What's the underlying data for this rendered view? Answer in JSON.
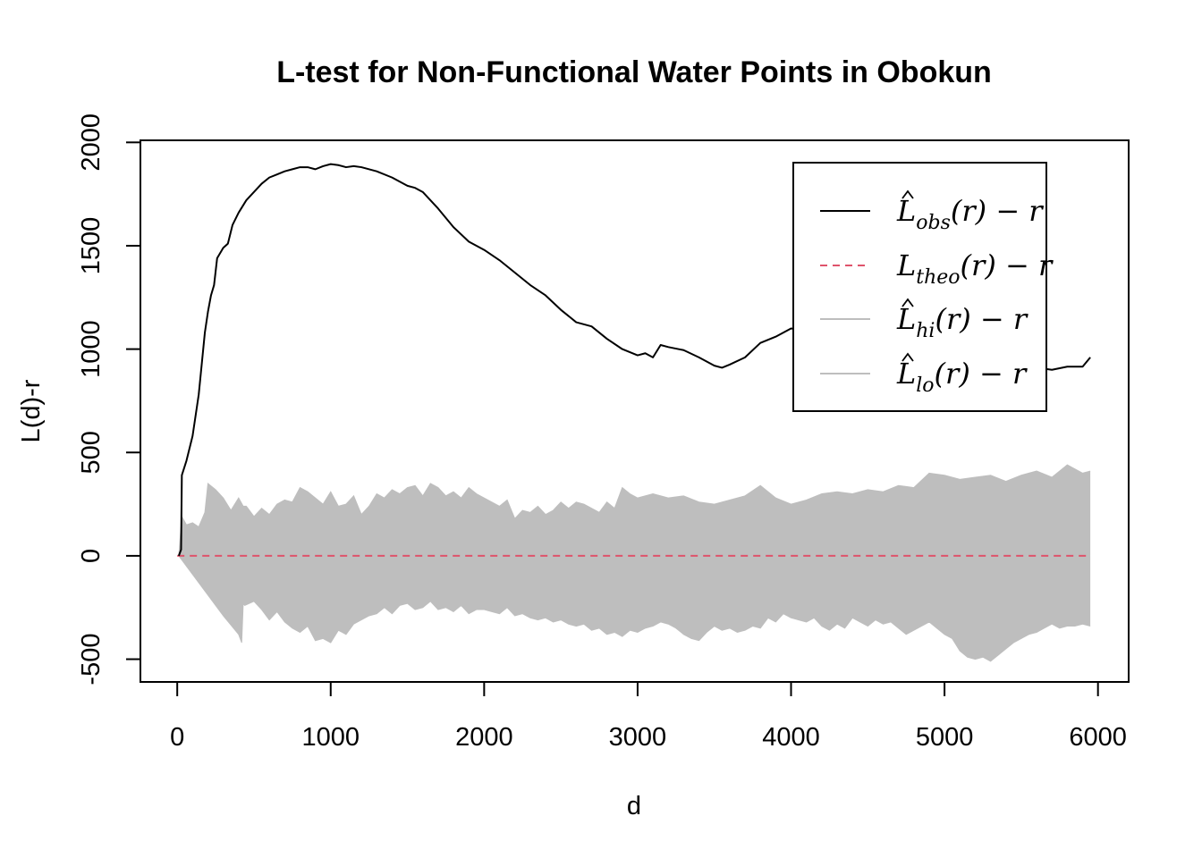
{
  "chart_data": {
    "type": "line",
    "title": "L-test for Non-Functional Water Points in Obokun",
    "xlabel": "d",
    "ylabel": "L(d)-r",
    "xlim": [
      -240,
      6200
    ],
    "ylim": [
      -610,
      2010
    ],
    "xticks": [
      "0",
      "1000",
      "2000",
      "3000",
      "4000",
      "5000",
      "6000"
    ],
    "yticks": [
      "-500",
      "0",
      "500",
      "1000",
      "1500",
      "2000"
    ],
    "grid": false,
    "legend_position": "top-right",
    "series": [
      {
        "name": "obs",
        "legend_label": {
          "base": "L",
          "sub": "obs",
          "suffix": "(r) − r",
          "hat": true
        },
        "color": "#000000",
        "style": "solid",
        "x": [
          10,
          25,
          30,
          60,
          100,
          120,
          140,
          160,
          180,
          200,
          220,
          240,
          260,
          300,
          330,
          360,
          400,
          450,
          500,
          550,
          600,
          650,
          700,
          750,
          800,
          850,
          900,
          950,
          1000,
          1050,
          1100,
          1150,
          1200,
          1300,
          1400,
          1500,
          1550,
          1600,
          1700,
          1800,
          1900,
          2000,
          2100,
          2200,
          2300,
          2400,
          2500,
          2600,
          2700,
          2800,
          2900,
          3000,
          3050,
          3100,
          3150,
          3200,
          3300,
          3400,
          3500,
          3550,
          3600,
          3700,
          3800,
          3900,
          4000,
          4100,
          4200,
          4300,
          4350,
          4400,
          4500,
          4600,
          4700,
          4800,
          4900,
          5000,
          5100,
          5200,
          5300,
          5400,
          5500,
          5600,
          5700,
          5800,
          5900,
          5950
        ],
        "y": [
          0,
          30,
          390,
          460,
          580,
          680,
          780,
          930,
          1080,
          1180,
          1260,
          1310,
          1440,
          1490,
          1510,
          1600,
          1660,
          1720,
          1760,
          1800,
          1830,
          1845,
          1860,
          1870,
          1880,
          1880,
          1870,
          1885,
          1895,
          1890,
          1880,
          1885,
          1880,
          1860,
          1830,
          1790,
          1780,
          1760,
          1680,
          1590,
          1520,
          1480,
          1430,
          1370,
          1310,
          1260,
          1190,
          1130,
          1110,
          1050,
          1000,
          970,
          980,
          960,
          1020,
          1010,
          995,
          960,
          920,
          910,
          925,
          960,
          1030,
          1060,
          1100,
          1090,
          1080,
          1020,
          990,
          1010,
          1070,
          1080,
          1050,
          1030,
          1020,
          1000,
          980,
          960,
          940,
          930,
          925,
          910,
          900,
          915,
          915,
          960
        ]
      },
      {
        "name": "theo",
        "legend_label": {
          "base": "L",
          "sub": "theo",
          "suffix": "(r) − r",
          "hat": false
        },
        "color": "#DF536B",
        "style": "dashed",
        "x": [
          0,
          5950
        ],
        "y": [
          0,
          0
        ]
      },
      {
        "name": "hi",
        "legend_label": {
          "base": "L",
          "sub": "hi",
          "suffix": "(r) − r",
          "hat": true
        },
        "color": "#BEBEBE",
        "style": "solid",
        "x": [
          10,
          30,
          60,
          100,
          140,
          180,
          200,
          250,
          300,
          350,
          400,
          430,
          450,
          500,
          550,
          600,
          650,
          700,
          750,
          800,
          850,
          900,
          950,
          1000,
          1050,
          1100,
          1150,
          1200,
          1250,
          1300,
          1350,
          1400,
          1450,
          1500,
          1550,
          1600,
          1650,
          1700,
          1750,
          1800,
          1850,
          1900,
          1950,
          2000,
          2050,
          2100,
          2150,
          2200,
          2250,
          2300,
          2350,
          2400,
          2450,
          2500,
          2550,
          2600,
          2650,
          2700,
          2750,
          2800,
          2850,
          2900,
          2950,
          3000,
          3100,
          3200,
          3300,
          3400,
          3500,
          3600,
          3700,
          3800,
          3900,
          4000,
          4100,
          4200,
          4300,
          4400,
          4500,
          4600,
          4700,
          4800,
          4900,
          5000,
          5100,
          5200,
          5300,
          5400,
          5500,
          5600,
          5700,
          5800,
          5900,
          5950
        ],
        "y": [
          0,
          190,
          150,
          160,
          140,
          210,
          350,
          320,
          280,
          220,
          280,
          240,
          240,
          190,
          230,
          200,
          250,
          270,
          260,
          330,
          310,
          280,
          250,
          310,
          240,
          250,
          290,
          200,
          240,
          300,
          280,
          320,
          300,
          330,
          340,
          290,
          350,
          330,
          290,
          310,
          280,
          330,
          300,
          280,
          260,
          240,
          270,
          180,
          220,
          210,
          240,
          200,
          220,
          260,
          230,
          260,
          250,
          230,
          210,
          260,
          230,
          330,
          300,
          280,
          300,
          280,
          290,
          260,
          250,
          270,
          290,
          340,
          280,
          250,
          270,
          300,
          310,
          300,
          320,
          310,
          340,
          330,
          400,
          390,
          370,
          380,
          390,
          360,
          390,
          410,
          380,
          440,
          400,
          410
        ]
      },
      {
        "name": "lo",
        "legend_label": {
          "base": "L",
          "sub": "lo",
          "suffix": "(r) − r",
          "hat": true
        },
        "color": "#BEBEBE",
        "style": "solid",
        "x": [
          10,
          100,
          200,
          300,
          400,
          420,
          430,
          440,
          500,
          550,
          600,
          650,
          700,
          750,
          800,
          850,
          900,
          950,
          1000,
          1050,
          1100,
          1150,
          1200,
          1250,
          1300,
          1350,
          1400,
          1450,
          1500,
          1550,
          1600,
          1650,
          1700,
          1750,
          1800,
          1850,
          1900,
          1950,
          2000,
          2050,
          2100,
          2150,
          2200,
          2250,
          2300,
          2350,
          2400,
          2450,
          2500,
          2550,
          2600,
          2650,
          2700,
          2750,
          2800,
          2850,
          2900,
          2950,
          3000,
          3050,
          3100,
          3150,
          3200,
          3250,
          3300,
          3350,
          3400,
          3450,
          3500,
          3550,
          3600,
          3650,
          3700,
          3750,
          3800,
          3850,
          3900,
          3950,
          4000,
          4050,
          4100,
          4150,
          4200,
          4250,
          4300,
          4350,
          4400,
          4450,
          4500,
          4550,
          4600,
          4650,
          4700,
          4750,
          4800,
          4850,
          4900,
          4950,
          5000,
          5050,
          5100,
          5150,
          5200,
          5250,
          5300,
          5350,
          5400,
          5450,
          5500,
          5550,
          5600,
          5650,
          5700,
          5750,
          5800,
          5850,
          5900,
          5950
        ],
        "y": [
          0,
          -90,
          -190,
          -290,
          -380,
          -420,
          -230,
          -240,
          -220,
          -260,
          -310,
          -270,
          -320,
          -350,
          -370,
          -340,
          -410,
          -400,
          -420,
          -360,
          -380,
          -330,
          -310,
          -290,
          -280,
          -250,
          -280,
          -240,
          -230,
          -260,
          -250,
          -220,
          -260,
          -250,
          -270,
          -240,
          -280,
          -260,
          -260,
          -270,
          -280,
          -250,
          -290,
          -280,
          -300,
          -310,
          -300,
          -320,
          -310,
          -330,
          -340,
          -330,
          -360,
          -350,
          -380,
          -370,
          -390,
          -360,
          -370,
          -350,
          -340,
          -320,
          -330,
          -350,
          -380,
          -400,
          -410,
          -370,
          -340,
          -360,
          -350,
          -370,
          -360,
          -340,
          -350,
          -300,
          -320,
          -280,
          -300,
          -310,
          -320,
          -300,
          -340,
          -360,
          -330,
          -350,
          -300,
          -320,
          -340,
          -310,
          -330,
          -320,
          -350,
          -380,
          -360,
          -340,
          -320,
          -350,
          -380,
          -400,
          -460,
          -490,
          -500,
          -490,
          -510,
          -480,
          -450,
          -420,
          -400,
          -380,
          -370,
          -350,
          -330,
          -350,
          -340,
          -340,
          -330,
          -340
        ]
      }
    ]
  }
}
